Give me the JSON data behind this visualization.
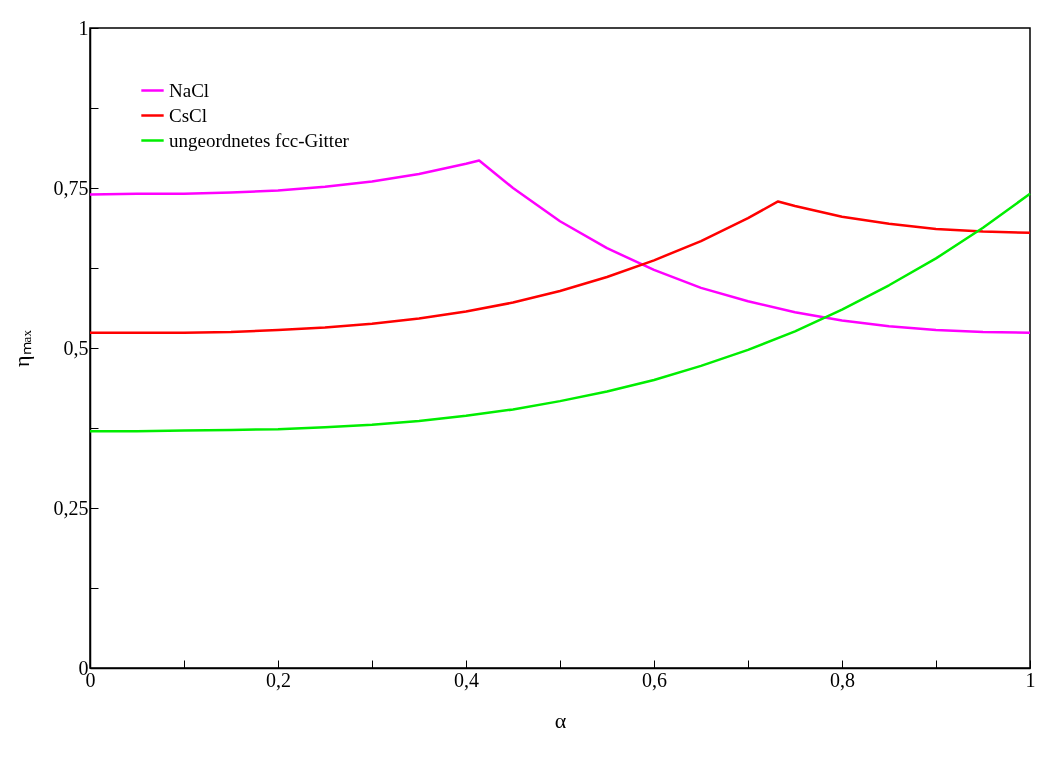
{
  "chart_data": {
    "type": "line",
    "xlabel": "α",
    "ylabel": "ηₘₐₓ",
    "xlim": [
      0,
      1
    ],
    "ylim": [
      0,
      1
    ],
    "xticks": [
      {
        "value": 0,
        "label": "0"
      },
      {
        "value": 0.1,
        "label": null
      },
      {
        "value": 0.2,
        "label": "0,2"
      },
      {
        "value": 0.3,
        "label": null
      },
      {
        "value": 0.4,
        "label": "0,4"
      },
      {
        "value": 0.5,
        "label": null
      },
      {
        "value": 0.6,
        "label": "0,6"
      },
      {
        "value": 0.7,
        "label": null
      },
      {
        "value": 0.8,
        "label": "0,8"
      },
      {
        "value": 0.9,
        "label": null
      },
      {
        "value": 1,
        "label": "1"
      }
    ],
    "yticks": [
      {
        "value": 0,
        "label": "0"
      },
      {
        "value": 0.125,
        "label": null
      },
      {
        "value": 0.25,
        "label": "0,25"
      },
      {
        "value": 0.375,
        "label": null
      },
      {
        "value": 0.5,
        "label": "0,5"
      },
      {
        "value": 0.625,
        "label": null
      },
      {
        "value": 0.75,
        "label": "0,75"
      },
      {
        "value": 0.875,
        "label": null
      },
      {
        "value": 1,
        "label": "1"
      }
    ],
    "grid": false,
    "legend": "top left",
    "series": [
      {
        "name": "NaCl",
        "color": "#ff00ff",
        "x": [
          0,
          0.05,
          0.1,
          0.15,
          0.2,
          0.25,
          0.3,
          0.35,
          0.4,
          0.414,
          0.45,
          0.5,
          0.55,
          0.6,
          0.65,
          0.7,
          0.75,
          0.8,
          0.85,
          0.9,
          0.95,
          1
        ],
        "values": [
          0.74,
          0.741,
          0.741,
          0.743,
          0.746,
          0.752,
          0.76,
          0.772,
          0.788,
          0.793,
          0.75,
          0.698,
          0.656,
          0.622,
          0.594,
          0.573,
          0.556,
          0.543,
          0.534,
          0.528,
          0.525,
          0.524
        ]
      },
      {
        "name": "CsCl",
        "color": "#ff0000",
        "x": [
          0,
          0.05,
          0.1,
          0.15,
          0.2,
          0.25,
          0.3,
          0.35,
          0.4,
          0.45,
          0.5,
          0.55,
          0.6,
          0.65,
          0.7,
          0.732,
          0.75,
          0.8,
          0.85,
          0.9,
          0.95,
          1
        ],
        "values": [
          0.524,
          0.524,
          0.524,
          0.525,
          0.528,
          0.532,
          0.538,
          0.546,
          0.557,
          0.571,
          0.589,
          0.611,
          0.637,
          0.667,
          0.703,
          0.729,
          0.722,
          0.705,
          0.694,
          0.686,
          0.682,
          0.68
        ]
      },
      {
        "name": "ungeordnetes fcc-Gitter",
        "color": "#00ee00",
        "x": [
          0,
          0.05,
          0.1,
          0.15,
          0.2,
          0.25,
          0.3,
          0.35,
          0.4,
          0.45,
          0.5,
          0.55,
          0.6,
          0.65,
          0.7,
          0.75,
          0.8,
          0.85,
          0.9,
          0.95,
          1
        ],
        "values": [
          0.37,
          0.37,
          0.371,
          0.372,
          0.373,
          0.376,
          0.38,
          0.386,
          0.394,
          0.404,
          0.417,
          0.432,
          0.45,
          0.472,
          0.497,
          0.526,
          0.56,
          0.598,
          0.64,
          0.688,
          0.741
        ]
      }
    ]
  }
}
